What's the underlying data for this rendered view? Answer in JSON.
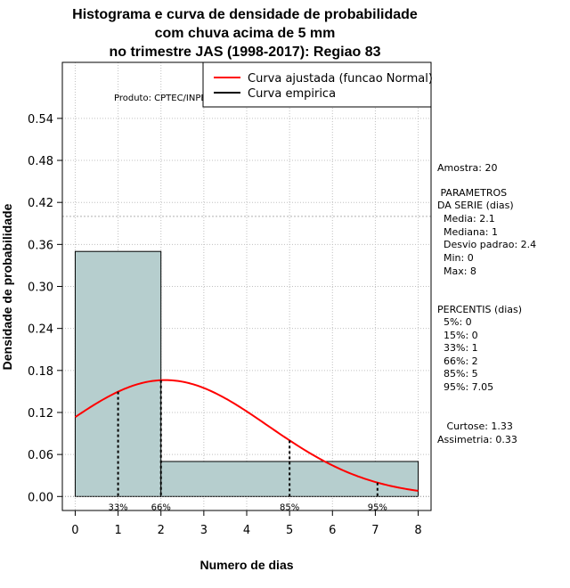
{
  "chart_data": {
    "type": "histogram",
    "title": [
      "Histograma e curva de densidade de probabilidade",
      "com chuva acima de 5 mm",
      "no trimestre JAS (1998-2017): Regiao 83"
    ],
    "xlabel": "Numero de dias",
    "ylabel": "Densidade de probabilidade",
    "xlim": [
      -0.3,
      8.3
    ],
    "ylim": [
      -0.02,
      0.62
    ],
    "x_ticks": [
      0,
      1,
      2,
      3,
      4,
      5,
      6,
      7,
      8
    ],
    "y_ticks": [
      0.0,
      0.06,
      0.12,
      0.18,
      0.24,
      0.3,
      0.36,
      0.42,
      0.48,
      0.54
    ],
    "y_tick_labels": [
      "0.00",
      "0.06",
      "0.12",
      "0.18",
      "0.24",
      "0.30",
      "0.36",
      "0.42",
      "0.48",
      "0.54"
    ],
    "grid": true,
    "ref_line_y": 0.4,
    "bins": [
      {
        "from": 0,
        "to": 2,
        "density": 0.35
      },
      {
        "from": 2,
        "to": 8,
        "density": 0.05
      }
    ],
    "bar_color": "#b6cece",
    "curve_color": "#ff0000",
    "normal_fit": {
      "mean": 2.1,
      "sd": 2.4
    },
    "percentile_markers": [
      {
        "x": 1,
        "label": "33%"
      },
      {
        "x": 2,
        "label": "66%"
      },
      {
        "x": 5,
        "label": "85%"
      },
      {
        "x": 7.05,
        "label": "95%"
      }
    ],
    "legend": {
      "placement": "top-right",
      "items": [
        {
          "label": "Curva ajustada (funcao Normal)",
          "color": "#ff0000"
        },
        {
          "label": "Curva empirica",
          "color": "#000000"
        }
      ]
    },
    "annotation": "Produto: CPTEC/INPE"
  },
  "stats": {
    "amostra": "Amostra: 20",
    "param_title_1": " PARAMETROS",
    "param_title_2": "DA SERIE (dias)",
    "params": [
      "  Media: 2.1",
      "  Mediana: 1",
      "  Desvio padrao: 2.4",
      "  Min: 0",
      "  Max: 8"
    ],
    "percentis_title": "PERCENTIS (dias)",
    "percentis": [
      "  5%: 0",
      "  15%: 0",
      "  33%: 1",
      "  66%: 2",
      "  85%: 5",
      "  95%: 7.05"
    ],
    "curtose": "   Curtose: 1.33",
    "assimetria": "Assimetria: 0.33"
  }
}
